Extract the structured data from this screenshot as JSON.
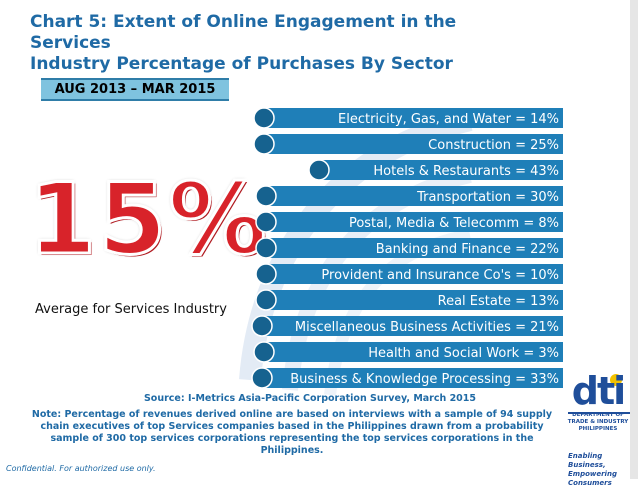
{
  "title_lines": [
    "Chart 5: Extent of Online Engagement in the Services",
    "Industry Percentage of Purchases By Sector"
  ],
  "period": "AUG 2013 – MAR 2015",
  "headline": {
    "value": "15%",
    "label": "Average for Services Industry"
  },
  "chart_data": {
    "type": "bar",
    "title": "Chart 5: Extent of Online Engagement in the Services Industry Percentage of Purchases By Sector",
    "unit": "%",
    "categories": [
      "Electricity, Gas, and Water",
      "Construction",
      "Hotels & Restaurants",
      "Transportation",
      "Postal, Media & Telecomm",
      "Banking and Finance",
      "Provident and Insurance Co's",
      "Real Estate",
      "Miscellaneous Business Activities",
      "Health and Social Work",
      "Business & Knowledge Processing"
    ],
    "values": [
      14,
      25,
      43,
      30,
      8,
      22,
      10,
      13,
      21,
      3,
      33
    ],
    "labels": [
      "Electricity, Gas, and Water = 14%",
      "Construction = 25%",
      "Hotels & Restaurants = 43%",
      "Transportation = 30%",
      "Postal, Media & Telecomm = 8%",
      "Banking and Finance = 22%",
      "Provident and Insurance Co's = 10%",
      "Real Estate = 13%",
      "Miscellaneous Business Activities = 21%",
      "Health and Social Work = 3%",
      "Business & Knowledge Processing = 33%"
    ],
    "bar_color": "#1f7fb8",
    "average": 15
  },
  "source": "Source: I-Metrics Asia-Pacific Corporation Survey, March 2015",
  "note": "Note: Percentage of revenues derived online are based on interviews with a sample of 94 supply chain executives of top Services companies based in the Philippines drawn from a probability sample of 300 top services corporations representing the top services corporations in the Philippines.",
  "confidential": "Confidential. For authorized use only.",
  "logo": {
    "word": "dti",
    "dept_lines": [
      "DEPARTMENT OF",
      "TRADE & INDUSTRY",
      "PHILIPPINES"
    ],
    "tagline_lines": [
      "Enabling Business,",
      "Empowering Consumers"
    ]
  },
  "colors": {
    "title": "#1f6aa5",
    "bar": "#1f7fb8",
    "headline": "#d8232a",
    "date_box": "#7fc3df"
  }
}
